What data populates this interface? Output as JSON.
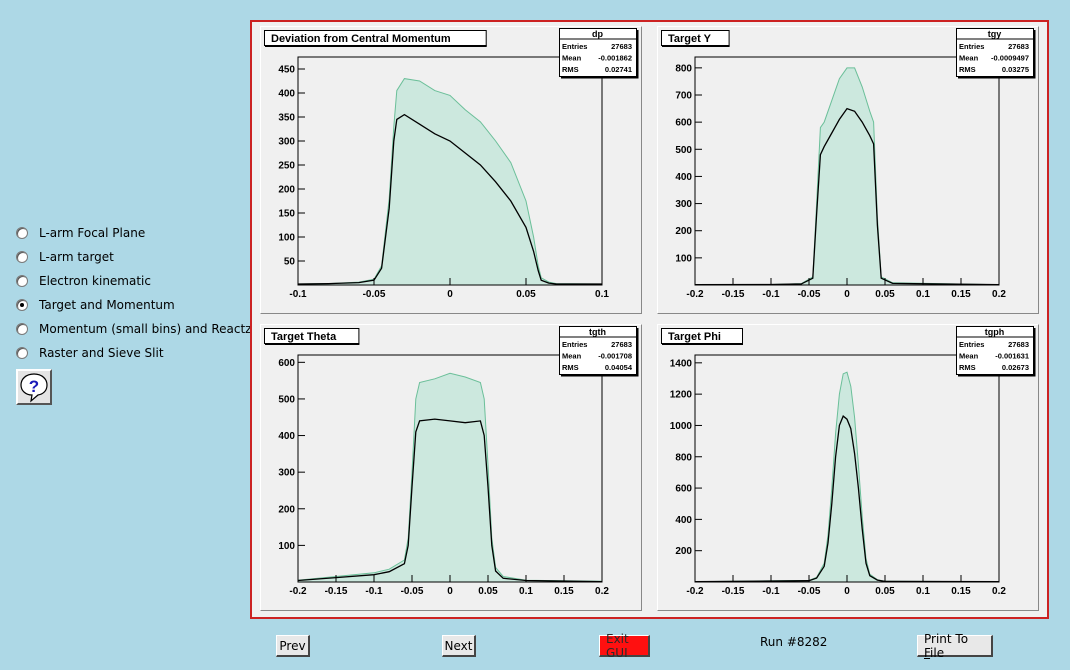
{
  "sidebar": {
    "options": [
      {
        "label": "L-arm Focal Plane",
        "selected": false
      },
      {
        "label": "L-arm target",
        "selected": false
      },
      {
        "label": "Electron kinematic",
        "selected": false
      },
      {
        "label": "Target and Momentum",
        "selected": true
      },
      {
        "label": "Momentum (small bins) and Reactz",
        "selected": false
      },
      {
        "label": "Raster and Sieve Slit",
        "selected": false
      }
    ],
    "help_icon": "question-mark-balloon-icon"
  },
  "footer": {
    "prev_label": "Prev",
    "next_label": "Next",
    "exit_label": "Exit GUI",
    "run_text": "Run #8282",
    "print_label_pre": "Print To ",
    "print_label_key": "F",
    "print_label_post": "ile"
  },
  "colors": {
    "background": "#add8e6",
    "canvas_border": "#cc2222",
    "exit_button": "#ff1010",
    "hist_fill": "#cce8de",
    "hist_outline": "#6bbf99",
    "hist_line": "#000000"
  },
  "chart_data": [
    {
      "type": "histogram",
      "title": "Deviation from Central Momentum",
      "stats": {
        "name": "dp",
        "entries": "27683",
        "mean": "-0.001862",
        "rms": "0.02741"
      },
      "xlim": [
        -0.1,
        0.1
      ],
      "ylim": [
        0,
        475
      ],
      "xticks": [
        -0.1,
        -0.05,
        0,
        0.05,
        0.1
      ],
      "xtick_labels": [
        "-0.1",
        "-0.05",
        "0",
        "0.05",
        "0.1"
      ],
      "yticks": [
        50,
        100,
        150,
        200,
        250,
        300,
        350,
        400,
        450
      ],
      "ytick_labels": [
        "50",
        "100",
        "150",
        "200",
        "250",
        "300",
        "350",
        "400",
        "450"
      ],
      "series": [
        {
          "x": [
            -0.1,
            -0.08,
            -0.06,
            -0.05,
            -0.045,
            -0.04,
            -0.037,
            -0.035,
            -0.03,
            -0.02,
            -0.01,
            0.0,
            0.01,
            0.02,
            0.03,
            0.04,
            0.05,
            0.055,
            0.058,
            0.06,
            0.065,
            0.07,
            0.1
          ],
          "y": [
            2,
            3,
            6,
            12,
            40,
            180,
            330,
            405,
            430,
            425,
            405,
            395,
            365,
            340,
            300,
            255,
            175,
            100,
            40,
            15,
            6,
            3,
            2
          ]
        },
        {
          "x": [
            -0.1,
            -0.08,
            -0.06,
            -0.05,
            -0.045,
            -0.04,
            -0.037,
            -0.035,
            -0.03,
            -0.02,
            -0.01,
            0.0,
            0.01,
            0.02,
            0.03,
            0.04,
            0.05,
            0.055,
            0.058,
            0.06,
            0.065,
            0.07,
            0.1
          ],
          "y": [
            2,
            3,
            5,
            10,
            35,
            160,
            300,
            345,
            355,
            335,
            315,
            300,
            275,
            250,
            215,
            175,
            120,
            70,
            30,
            10,
            4,
            2,
            2
          ]
        }
      ]
    },
    {
      "type": "histogram",
      "title": "Target Y",
      "stats": {
        "name": "tgy",
        "entries": "27683",
        "mean": "-0.0009497",
        "rms": "0.03275"
      },
      "xlim": [
        -0.2,
        0.2
      ],
      "ylim": [
        0,
        840
      ],
      "xticks": [
        -0.2,
        -0.15,
        -0.1,
        -0.05,
        0,
        0.05,
        0.1,
        0.15,
        0.2
      ],
      "xtick_labels": [
        "-0.2",
        "-0.15",
        "-0.1",
        "-0.05",
        "0",
        "0.05",
        "0.1",
        "0.15",
        "0.2"
      ],
      "yticks": [
        100,
        200,
        300,
        400,
        500,
        600,
        700,
        800
      ],
      "ytick_labels": [
        "100",
        "200",
        "300",
        "400",
        "500",
        "600",
        "700",
        "800"
      ],
      "series": [
        {
          "x": [
            -0.2,
            -0.1,
            -0.06,
            -0.045,
            -0.04,
            -0.035,
            -0.03,
            -0.02,
            -0.01,
            0.0,
            0.01,
            0.02,
            0.03,
            0.035,
            0.04,
            0.045,
            0.06,
            0.2
          ],
          "y": [
            1,
            2,
            5,
            30,
            300,
            580,
            600,
            680,
            760,
            800,
            800,
            730,
            640,
            600,
            250,
            30,
            8,
            1
          ]
        },
        {
          "x": [
            -0.2,
            -0.1,
            -0.06,
            -0.045,
            -0.04,
            -0.035,
            -0.03,
            -0.02,
            -0.01,
            0.0,
            0.01,
            0.02,
            0.03,
            0.035,
            0.04,
            0.045,
            0.06,
            0.2
          ],
          "y": [
            1,
            2,
            4,
            25,
            260,
            480,
            510,
            560,
            610,
            650,
            640,
            600,
            550,
            520,
            220,
            25,
            6,
            1
          ]
        }
      ]
    },
    {
      "type": "histogram",
      "title": "Target Theta",
      "stats": {
        "name": "tgth",
        "entries": "27683",
        "mean": "-0.001708",
        "rms": "0.04054"
      },
      "xlim": [
        -0.2,
        0.2
      ],
      "ylim": [
        0,
        620
      ],
      "xticks": [
        -0.2,
        -0.15,
        -0.1,
        -0.05,
        0,
        0.05,
        0.1,
        0.15,
        0.2
      ],
      "xtick_labels": [
        "-0.2",
        "-0.15",
        "-0.1",
        "-0.05",
        "0",
        "0.05",
        "0.1",
        "0.15",
        "0.2"
      ],
      "yticks": [
        100,
        200,
        300,
        400,
        500,
        600
      ],
      "ytick_labels": [
        "100",
        "200",
        "300",
        "400",
        "500",
        "600"
      ],
      "series": [
        {
          "x": [
            -0.2,
            -0.15,
            -0.1,
            -0.08,
            -0.06,
            -0.055,
            -0.05,
            -0.045,
            -0.04,
            -0.02,
            0.0,
            0.02,
            0.04,
            0.045,
            0.05,
            0.055,
            0.06,
            0.07,
            0.1,
            0.2
          ],
          "y": [
            5,
            15,
            25,
            35,
            60,
            120,
            300,
            500,
            545,
            555,
            570,
            560,
            545,
            500,
            320,
            120,
            40,
            15,
            5,
            2
          ]
        },
        {
          "x": [
            -0.2,
            -0.15,
            -0.1,
            -0.08,
            -0.06,
            -0.055,
            -0.05,
            -0.045,
            -0.04,
            -0.02,
            0.0,
            0.02,
            0.04,
            0.045,
            0.05,
            0.055,
            0.06,
            0.07,
            0.1,
            0.2
          ],
          "y": [
            4,
            12,
            20,
            28,
            50,
            100,
            260,
            410,
            440,
            445,
            440,
            435,
            440,
            400,
            260,
            100,
            30,
            10,
            4,
            1
          ]
        }
      ]
    },
    {
      "type": "histogram",
      "title": "Target Phi",
      "stats": {
        "name": "tgph",
        "entries": "27683",
        "mean": "-0.001631",
        "rms": "0.02673"
      },
      "xlim": [
        -0.2,
        0.2
      ],
      "ylim": [
        0,
        1450
      ],
      "xticks": [
        -0.2,
        -0.15,
        -0.1,
        -0.05,
        0,
        0.05,
        0.1,
        0.15,
        0.2
      ],
      "xtick_labels": [
        "-0.2",
        "-0.15",
        "-0.1",
        "-0.05",
        "0",
        "0.05",
        "0.1",
        "0.15",
        "0.2"
      ],
      "yticks": [
        200,
        400,
        600,
        800,
        1000,
        1200,
        1400
      ],
      "ytick_labels": [
        "200",
        "400",
        "600",
        "800",
        "1000",
        "1200",
        "1400"
      ],
      "series": [
        {
          "x": [
            -0.2,
            -0.05,
            -0.04,
            -0.03,
            -0.025,
            -0.02,
            -0.015,
            -0.01,
            -0.005,
            0.0,
            0.005,
            0.01,
            0.015,
            0.02,
            0.025,
            0.03,
            0.04,
            0.05,
            0.2
          ],
          "y": [
            2,
            10,
            30,
            120,
            300,
            600,
            950,
            1200,
            1330,
            1340,
            1250,
            1050,
            750,
            420,
            150,
            50,
            15,
            5,
            2
          ]
        },
        {
          "x": [
            -0.2,
            -0.05,
            -0.04,
            -0.03,
            -0.025,
            -0.02,
            -0.015,
            -0.01,
            -0.005,
            0.0,
            0.005,
            0.01,
            0.015,
            0.02,
            0.025,
            0.03,
            0.04,
            0.05,
            0.2
          ],
          "y": [
            2,
            8,
            25,
            100,
            250,
            500,
            800,
            1000,
            1060,
            1040,
            980,
            820,
            600,
            340,
            120,
            40,
            12,
            4,
            2
          ]
        }
      ]
    }
  ]
}
